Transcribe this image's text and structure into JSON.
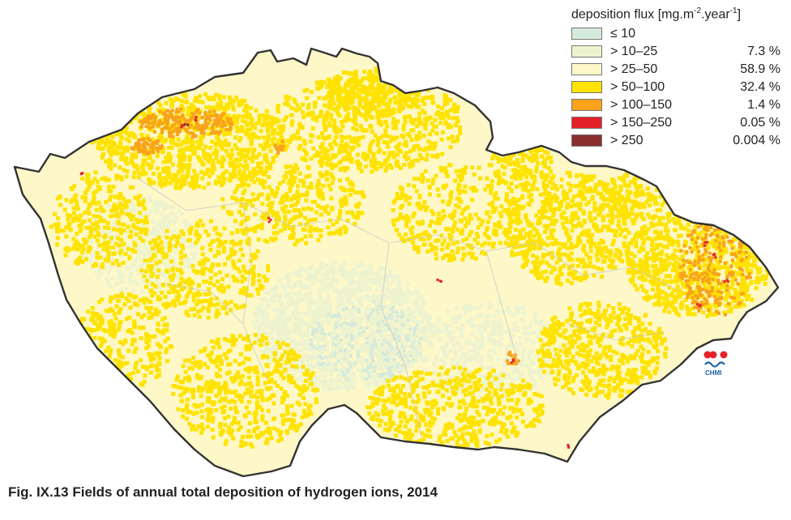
{
  "legend": {
    "title_prefix": "deposition flux [mg.m",
    "title_exp1": "-2",
    "title_mid": ".year",
    "title_exp2": "-1",
    "title_suffix": "]",
    "items": [
      {
        "label": "≤ 10",
        "percent": "",
        "color": "#d5eadb"
      },
      {
        "label": "> 10–25",
        "percent": "7.3 %",
        "color": "#eef3cf"
      },
      {
        "label": "> 25–50",
        "percent": "58.9 %",
        "color": "#fef8c8"
      },
      {
        "label": "> 50–100",
        "percent": "32.4 %",
        "color": "#ffe300"
      },
      {
        "label": "> 100–150",
        "percent": "1.4 %",
        "color": "#f8a31b"
      },
      {
        "label": "> 150–250",
        "percent": "0.05 %",
        "color": "#e3222a"
      },
      {
        "label": "> 250",
        "percent": "0.004 %",
        "color": "#8b2e2e"
      }
    ]
  },
  "logo": {
    "text": "CHMI"
  },
  "caption": "Fig. IX.13  Fields of annual total deposition of hydrogen ions, 2014"
}
